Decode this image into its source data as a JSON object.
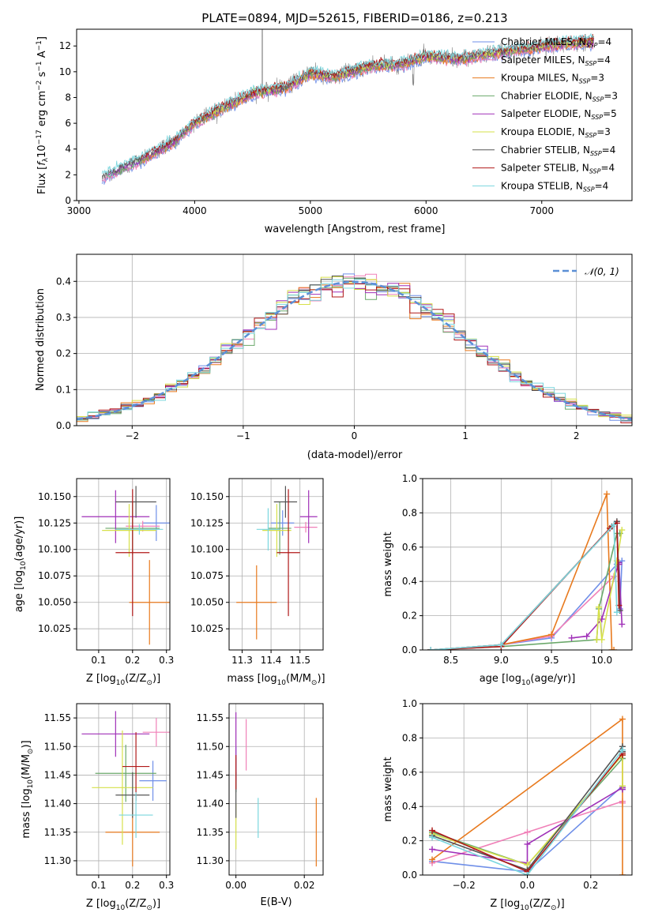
{
  "title": "PLATE=0894, MJD=52615, FIBERID=0186, z=0.213",
  "colors": {
    "Chabrier MILES": "#6f8fe8",
    "Salpeter MILES": "#f080b8",
    "Kroupa MILES": "#e87a1e",
    "Chabrier ELODIE": "#6aa86a",
    "Salpeter ELODIE": "#a030b8",
    "Kroupa ELODIE": "#d6e04a",
    "Chabrier STELIB": "#555555",
    "Salpeter STELIB": "#b01818",
    "Kroupa STELIB": "#7ad6de",
    "gaussian": "#5b8fd6"
  },
  "chart_data": [
    {
      "type": "line",
      "id": "spectrum",
      "xlabel": "wavelength [Angstrom, rest frame]",
      "ylabel_parts": [
        "Flux [",
        "f",
        "λ",
        "10",
        "−17",
        " erg cm",
        "−2",
        " s",
        "−1",
        " A",
        "−1",
        "]"
      ],
      "xlim": [
        2980,
        7780
      ],
      "ylim": [
        0,
        13.3
      ],
      "xticks": [
        3000,
        4000,
        5000,
        6000,
        7000
      ],
      "yticks": [
        0,
        2,
        4,
        6,
        8,
        10,
        12
      ],
      "grid": false,
      "legend_position": "right",
      "series": [
        {
          "name": "Chabrier MILES",
          "sup": "=4"
        },
        {
          "name": "Salpeter MILES",
          "sup": "=4"
        },
        {
          "name": "Kroupa MILES",
          "sup": "=3"
        },
        {
          "name": "Chabrier ELODIE",
          "sup": "=3"
        },
        {
          "name": "Salpeter ELODIE",
          "sup": "=5"
        },
        {
          "name": "Kroupa ELODIE",
          "sup": "=3"
        },
        {
          "name": "Chabrier STELIB",
          "sup": "=4"
        },
        {
          "name": "Salpeter STELIB",
          "sup": "=4"
        },
        {
          "name": "Kroupa STELIB",
          "sup": "=4"
        }
      ],
      "legend_subscript": "N",
      "legend_subscript_label": "SSP",
      "data_trend": {
        "wavelength": [
          3200,
          3500,
          3800,
          4000,
          4200,
          4500,
          4800,
          5000,
          5200,
          5500,
          5800,
          6000,
          6300,
          6600,
          6900,
          7200,
          7400,
          7500
        ],
        "flux": [
          1.8,
          3.0,
          4.4,
          6.0,
          7.0,
          8.3,
          8.8,
          9.9,
          9.6,
          10.4,
          10.6,
          11.2,
          11.0,
          11.5,
          11.8,
          12.2,
          12.3,
          12.5
        ]
      }
    },
    {
      "type": "histogram",
      "id": "residuals",
      "xlabel": "(data-model)/error",
      "ylabel": "Normed distribution",
      "xlim": [
        -2.5,
        2.5
      ],
      "ylim": [
        0,
        0.475
      ],
      "xticks": [
        -2,
        -1,
        0,
        1,
        2
      ],
      "yticks": [
        0.0,
        0.1,
        0.2,
        0.3,
        0.4
      ],
      "grid": true,
      "legend": "𝒩(0, 1)",
      "legend_position": "top-right",
      "bin_width": 0.1
    },
    {
      "type": "scatter",
      "id": "age-vs-Z",
      "xlabel_parts": [
        "Z [log",
        "10",
        "(Z/Z",
        "⊙",
        ")]"
      ],
      "ylabel_parts": [
        "age  [log",
        "10",
        "(age/yr)]"
      ],
      "xlim": [
        0.035,
        0.31
      ],
      "ylim": [
        10.005,
        10.167
      ],
      "xticks": [
        0.1,
        0.2,
        0.3
      ],
      "yticks": [
        10.025,
        10.05,
        10.075,
        10.1,
        10.125,
        10.15
      ],
      "points": [
        {
          "series": "Chabrier MILES",
          "x": 0.27,
          "y": 10.125,
          "xerr": 0.04,
          "yerr": 0.017
        },
        {
          "series": "Salpeter MILES",
          "x": 0.23,
          "y": 10.122,
          "xerr": 0.05,
          "yerr": 0.005
        },
        {
          "series": "Kroupa MILES",
          "x": 0.25,
          "y": 10.05,
          "xerr": 0.06,
          "yerr": 0.04
        },
        {
          "series": "Chabrier ELODIE",
          "x": 0.2,
          "y": 10.12,
          "xerr": 0.08,
          "yerr": 0.025
        },
        {
          "series": "Salpeter ELODIE",
          "x": 0.15,
          "y": 10.131,
          "xerr": 0.1,
          "yerr": 0.025
        },
        {
          "series": "Kroupa ELODIE",
          "x": 0.19,
          "y": 10.118,
          "xerr": 0.08,
          "yerr": 0.025
        },
        {
          "series": "Chabrier STELIB",
          "x": 0.21,
          "y": 10.145,
          "xerr": 0.06,
          "yerr": 0.015
        },
        {
          "series": "Salpeter STELIB",
          "x": 0.2,
          "y": 10.097,
          "xerr": 0.05,
          "yerr": 0.06
        },
        {
          "series": "Kroupa STELIB",
          "x": 0.22,
          "y": 10.119,
          "xerr": 0.07,
          "yerr": 0.005
        }
      ]
    },
    {
      "type": "scatter",
      "id": "age-vs-mass",
      "xlabel_parts": [
        "mass [log",
        "10",
        "(M/M",
        "⊙",
        ")]"
      ],
      "xlim": [
        11.255,
        11.58
      ],
      "ylim": [
        10.005,
        10.167
      ],
      "xticks": [
        11.3,
        11.4,
        11.5
      ],
      "yticks": [
        10.025,
        10.05,
        10.075,
        10.1,
        10.125,
        10.15
      ],
      "points": [
        {
          "series": "Chabrier MILES",
          "x": 11.44,
          "y": 10.125,
          "xerr": 0.04,
          "yerr": 0.012
        },
        {
          "series": "Salpeter MILES",
          "x": 11.52,
          "y": 10.121,
          "xerr": 0.04,
          "yerr": 0.005
        },
        {
          "series": "Kroupa MILES",
          "x": 11.35,
          "y": 10.05,
          "xerr": 0.07,
          "yerr": 0.035
        },
        {
          "series": "Chabrier ELODIE",
          "x": 11.43,
          "y": 10.12,
          "xerr": 0.04,
          "yerr": 0.025
        },
        {
          "series": "Salpeter ELODIE",
          "x": 11.53,
          "y": 10.131,
          "xerr": 0.03,
          "yerr": 0.025
        },
        {
          "series": "Kroupa ELODIE",
          "x": 11.42,
          "y": 10.118,
          "xerr": 0.05,
          "yerr": 0.025
        },
        {
          "series": "Chabrier STELIB",
          "x": 11.45,
          "y": 10.145,
          "xerr": 0.04,
          "yerr": 0.015
        },
        {
          "series": "Salpeter STELIB",
          "x": 11.46,
          "y": 10.097,
          "xerr": 0.04,
          "yerr": 0.06
        },
        {
          "series": "Kroupa STELIB",
          "x": 11.39,
          "y": 10.119,
          "xerr": 0.04,
          "yerr": 0.02
        }
      ]
    },
    {
      "type": "line",
      "id": "mass-weight-vs-age",
      "xlabel_parts": [
        "age  [log",
        "10",
        "(age/yr)]"
      ],
      "ylabel": "mass weight",
      "xlim": [
        8.22,
        10.3
      ],
      "ylim": [
        0.0,
        1.0
      ],
      "xticks": [
        8.5,
        9.0,
        9.5,
        10.0
      ],
      "yticks": [
        0.0,
        0.2,
        0.4,
        0.6,
        0.8,
        1.0
      ],
      "grid": true,
      "series": [
        {
          "name": "Chabrier MILES",
          "x": [
            8.3,
            9.0,
            9.5,
            10.15,
            10.2,
            10.18
          ],
          "y": [
            0.0,
            0.03,
            0.07,
            0.5,
            0.52,
            0.24
          ]
        },
        {
          "name": "Salpeter MILES",
          "x": [
            8.3,
            9.0,
            9.5,
            10.12,
            10.17
          ],
          "y": [
            0.0,
            0.03,
            0.08,
            0.43,
            0.5
          ]
        },
        {
          "name": "Kroupa MILES",
          "x": [
            8.3,
            9.0,
            9.5,
            10.05,
            10.1,
            10.12
          ],
          "y": [
            0.0,
            0.03,
            0.09,
            0.91,
            0.0,
            0.0
          ]
        },
        {
          "name": "Chabrier ELODIE",
          "x": [
            8.3,
            9.0,
            9.95,
            9.97,
            10.15,
            10.18
          ],
          "y": [
            0.0,
            0.02,
            0.06,
            0.24,
            0.68,
            0.68
          ]
        },
        {
          "name": "Salpeter ELODIE",
          "x": [
            9.7,
            9.85,
            10.0,
            10.17,
            10.2,
            10.17
          ],
          "y": [
            0.07,
            0.08,
            0.18,
            0.51,
            0.15,
            0.5
          ]
        },
        {
          "name": "Kroupa ELODIE",
          "x": [
            9.95,
            9.97,
            10.0,
            10.15,
            10.2
          ],
          "y": [
            0.06,
            0.25,
            0.06,
            0.52,
            0.7
          ]
        },
        {
          "name": "Chabrier STELIB",
          "x": [
            8.3,
            9.0,
            10.1,
            10.15,
            10.18
          ],
          "y": [
            0.0,
            0.03,
            0.72,
            0.75,
            0.23
          ]
        },
        {
          "name": "Salpeter STELIB",
          "x": [
            8.3,
            9.0,
            10.08,
            10.15,
            10.17
          ],
          "y": [
            0.0,
            0.02,
            0.71,
            0.74,
            0.26
          ]
        },
        {
          "name": "Kroupa STELIB",
          "x": [
            8.3,
            9.0,
            10.12,
            10.15
          ],
          "y": [
            0.0,
            0.03,
            0.73,
            0.22
          ]
        }
      ]
    },
    {
      "type": "scatter",
      "id": "mass-vs-Z",
      "xlabel_parts": [
        "Z [log",
        "10",
        "(Z/Z",
        "⊙",
        ")]"
      ],
      "ylabel_parts": [
        "mass [log",
        "10",
        "(M/M",
        "⊙",
        ")]"
      ],
      "xlim": [
        0.035,
        0.31
      ],
      "ylim": [
        11.275,
        11.575
      ],
      "xticks": [
        0.1,
        0.2,
        0.3
      ],
      "yticks": [
        11.3,
        11.35,
        11.4,
        11.45,
        11.5,
        11.55
      ],
      "points": [
        {
          "series": "Chabrier MILES",
          "x": 0.26,
          "y": 11.44,
          "xerr": 0.04,
          "yerr": 0.035
        },
        {
          "series": "Salpeter MILES",
          "x": 0.27,
          "y": 11.525,
          "xerr": 0.04,
          "yerr": 0.025
        },
        {
          "series": "Kroupa MILES",
          "x": 0.2,
          "y": 11.35,
          "xerr": 0.08,
          "yerr": 0.06
        },
        {
          "series": "Chabrier ELODIE",
          "x": 0.18,
          "y": 11.453,
          "xerr": 0.09,
          "yerr": 0.05
        },
        {
          "series": "Salpeter ELODIE",
          "x": 0.15,
          "y": 11.522,
          "xerr": 0.1,
          "yerr": 0.04
        },
        {
          "series": "Kroupa ELODIE",
          "x": 0.17,
          "y": 11.428,
          "xerr": 0.09,
          "yerr": 0.1
        },
        {
          "series": "Chabrier STELIB",
          "x": 0.2,
          "y": 11.415,
          "xerr": 0.05,
          "yerr": 0.04
        },
        {
          "series": "Salpeter STELIB",
          "x": 0.21,
          "y": 11.465,
          "xerr": 0.04,
          "yerr": 0.06
        },
        {
          "series": "Kroupa STELIB",
          "x": 0.21,
          "y": 11.38,
          "xerr": 0.05,
          "yerr": 0.04
        }
      ]
    },
    {
      "type": "scatter",
      "id": "mass-vs-EBV",
      "xlabel": "E(B-V)",
      "xlim": [
        -0.002,
        0.0255
      ],
      "ylim": [
        11.275,
        11.575
      ],
      "xticks": [
        0.0,
        0.02
      ],
      "xtick_labels": [
        "0.00",
        "0.02"
      ],
      "yticks": [
        11.3,
        11.35,
        11.4,
        11.45,
        11.5,
        11.55
      ],
      "points": [
        {
          "series": "Chabrier MILES",
          "x": 0.0,
          "y": 11.46,
          "xerr": 0.0,
          "yerr": 0.04
        },
        {
          "series": "Salpeter MILES",
          "x": 0.003,
          "y": 11.503,
          "xerr": 0.0,
          "yerr": 0.045
        },
        {
          "series": "Kroupa MILES",
          "x": 0.0235,
          "y": 11.35,
          "xerr": 0.0,
          "yerr": 0.06
        },
        {
          "series": "Chabrier ELODIE",
          "x": 0.0,
          "y": 11.45,
          "xerr": 0.0,
          "yerr": 0.03
        },
        {
          "series": "Salpeter ELODIE",
          "x": 0.0,
          "y": 11.5,
          "xerr": 0.0,
          "yerr": 0.06
        },
        {
          "series": "Kroupa ELODIE",
          "x": 0.0,
          "y": 11.36,
          "xerr": 0.0,
          "yerr": 0.04
        },
        {
          "series": "Chabrier STELIB",
          "x": 0.0,
          "y": 11.415,
          "xerr": 0.0,
          "yerr": 0.04
        },
        {
          "series": "Salpeter STELIB",
          "x": 0.0,
          "y": 11.455,
          "xerr": 0.0,
          "yerr": 0.03
        },
        {
          "series": "Kroupa STELIB",
          "x": 0.0065,
          "y": 11.375,
          "xerr": 0.0,
          "yerr": 0.035
        }
      ]
    },
    {
      "type": "line",
      "id": "mass-weight-vs-Z",
      "xlabel_parts": [
        "Z [log",
        "10",
        "(Z/Z",
        "⊙",
        ")]"
      ],
      "ylabel": "mass weight",
      "xlim": [
        -0.33,
        0.33
      ],
      "ylim": [
        0.0,
        1.0
      ],
      "xticks": [
        -0.2,
        0.0,
        0.2
      ],
      "yticks": [
        0.0,
        0.2,
        0.4,
        0.6,
        0.8,
        1.0
      ],
      "grid": true,
      "series": [
        {
          "name": "Chabrier MILES",
          "x": [
            -0.3,
            0.0,
            0.3,
            0.3
          ],
          "y": [
            0.08,
            0.02,
            0.52,
            0.5
          ]
        },
        {
          "name": "Salpeter MILES",
          "x": [
            -0.3,
            0.0,
            0.3,
            0.3
          ],
          "y": [
            0.07,
            0.25,
            0.43,
            0.42
          ]
        },
        {
          "name": "Kroupa MILES",
          "x": [
            -0.3,
            0.3,
            0.3
          ],
          "y": [
            0.09,
            0.91,
            0.0
          ]
        },
        {
          "name": "Chabrier ELODIE",
          "x": [
            -0.3,
            0.0,
            0.3,
            0.3
          ],
          "y": [
            0.25,
            0.06,
            0.68,
            0.68
          ]
        },
        {
          "name": "Salpeter ELODIE",
          "x": [
            -0.3,
            0.0,
            0.0,
            0.3,
            0.3
          ],
          "y": [
            0.15,
            0.07,
            0.18,
            0.51,
            0.5
          ]
        },
        {
          "name": "Kroupa ELODIE",
          "x": [
            -0.3,
            0.0,
            0.3,
            0.3
          ],
          "y": [
            0.24,
            0.06,
            0.7,
            0.52
          ]
        },
        {
          "name": "Chabrier STELIB",
          "x": [
            -0.3,
            0.0,
            0.3,
            0.3
          ],
          "y": [
            0.23,
            0.03,
            0.75,
            0.72
          ]
        },
        {
          "name": "Salpeter STELIB",
          "x": [
            -0.3,
            0.0,
            0.3,
            0.3
          ],
          "y": [
            0.26,
            0.02,
            0.71,
            0.7
          ]
        },
        {
          "name": "Kroupa STELIB",
          "x": [
            -0.3,
            0.0,
            0.3,
            0.3
          ],
          "y": [
            0.22,
            0.0,
            0.73,
            0.73
          ]
        }
      ]
    }
  ]
}
